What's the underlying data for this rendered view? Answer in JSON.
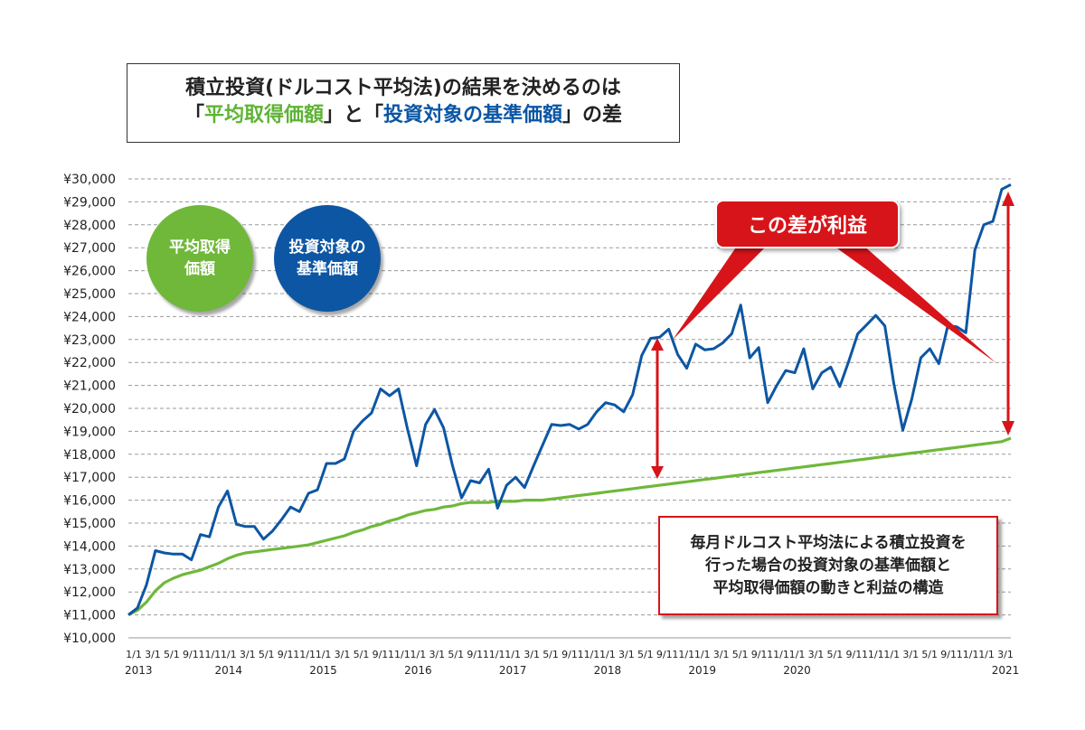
{
  "title": {
    "line1": "積立投資(ドルコスト平均法)の結果を決めるのは",
    "l2_open1": "「",
    "l2_hl1": "平均取得価額",
    "l2_close1": "」",
    "l2_mid": "と",
    "l2_open2": "「",
    "l2_hl2": "投資対象の基準価額",
    "l2_close2": "」",
    "l2_end": "の差"
  },
  "legend_circles": {
    "green": {
      "line1": "平均取得",
      "line2": "価額",
      "color": "#6fb83a"
    },
    "blue": {
      "line1": "投資対象の",
      "line2": "基準価額",
      "color": "#0d56a3"
    }
  },
  "callout": {
    "label": "この差が利益",
    "color": "#d7141a"
  },
  "note": {
    "line1": "毎月ドルコスト平均法による積立投資を",
    "line2": "行った場合の投資対象の基準価額と",
    "line3": "平均取得価額の動きと利益の構造"
  },
  "chart_data": {
    "type": "line",
    "grid": true,
    "ylim": [
      10000,
      30000
    ],
    "y_ticks": [
      "¥10,000",
      "¥11,000",
      "¥12,000",
      "¥13,000",
      "¥14,000",
      "¥15,000",
      "¥16,000",
      "¥17,000",
      "¥18,000",
      "¥19,000",
      "¥20,000",
      "¥21,000",
      "¥22,000",
      "¥23,000",
      "¥24,000",
      "¥25,000",
      "¥26,000",
      "¥27,000",
      "¥28,000",
      "¥29,000",
      "¥30,000"
    ],
    "x_tick_labels": [
      "1/1",
      "3/1",
      "5/1",
      "9/1",
      "11/1",
      "1/1",
      "3/1",
      "5/1",
      "9/1",
      "11/1",
      "1/1",
      "3/1",
      "5/1",
      "9/1",
      "11/1",
      "1/1",
      "3/1",
      "5/1",
      "9/1",
      "11/1",
      "1/1",
      "3/1",
      "5/1",
      "9/1",
      "11/1",
      "1/1",
      "3/1",
      "5/1",
      "9/1",
      "11/1",
      "1/1",
      "3/1",
      "5/1",
      "9/1",
      "11/1",
      "1/1",
      "3/1",
      "5/1",
      "9/1",
      "11/1",
      "1/1",
      "3/1",
      "5/1",
      "9/1",
      "11/1",
      "1/1",
      "3/1"
    ],
    "years": [
      "2013",
      "2014",
      "2015",
      "2016",
      "2017",
      "2018",
      "2019",
      "2020",
      "2021"
    ],
    "series": [
      {
        "color": "#0d56a3",
        "values": [
          11000,
          11300,
          12300,
          13800,
          13700,
          13650,
          13650,
          13400,
          14500,
          14400,
          15700,
          16400,
          14950,
          14850,
          14850,
          14300,
          14650,
          15150,
          15700,
          15500,
          16300,
          16450,
          17600,
          17600,
          17800,
          19000,
          19450,
          19800,
          20850,
          20550,
          20850,
          19100,
          17500,
          19300,
          19950,
          19150,
          17500,
          16100,
          16850,
          16750,
          17350,
          15650,
          16650,
          17000,
          16550,
          17500,
          18400,
          19300,
          19250,
          19300,
          19100,
          19300,
          19850,
          20250,
          20150,
          19850,
          20600,
          22300,
          23050,
          23100,
          23450,
          22350,
          21750,
          22800,
          22550,
          22600,
          22850,
          23250,
          24500,
          22200,
          22650,
          20250,
          21000,
          21650,
          21550,
          22600,
          20850,
          21550,
          21800,
          20950,
          22050,
          23250,
          23650,
          24050,
          23600,
          21100,
          19050,
          20400,
          22200,
          22600,
          21950,
          23600,
          23550,
          23300,
          26900,
          28000,
          28150,
          29550,
          29750
        ]
      },
      {
        "color": "#6fb83a",
        "values": [
          11000,
          11200,
          11550,
          12050,
          12400,
          12600,
          12750,
          12850,
          12950,
          13100,
          13250,
          13450,
          13600,
          13700,
          13750,
          13800,
          13850,
          13900,
          13950,
          14000,
          14050,
          14150,
          14250,
          14350,
          14450,
          14600,
          14700,
          14850,
          14950,
          15100,
          15200,
          15350,
          15450,
          15550,
          15600,
          15700,
          15750,
          15850,
          15900,
          15900,
          15900,
          15950,
          15950,
          15950,
          16000,
          16000,
          16000,
          16050,
          16100,
          16150,
          16200,
          16250,
          16300,
          16350,
          16400,
          16450,
          16500,
          16550,
          16600,
          16650,
          16700,
          16750,
          16800,
          16850,
          16900,
          16950,
          17000,
          17050,
          17100,
          17150,
          17200,
          17250,
          17300,
          17350,
          17400,
          17450,
          17500,
          17550,
          17600,
          17650,
          17700,
          17750,
          17800,
          17850,
          17900,
          17950,
          18000,
          18050,
          18100,
          18150,
          18200,
          18250,
          18300,
          18350,
          18400,
          18450,
          18500,
          18550,
          18700
        ]
      }
    ]
  }
}
